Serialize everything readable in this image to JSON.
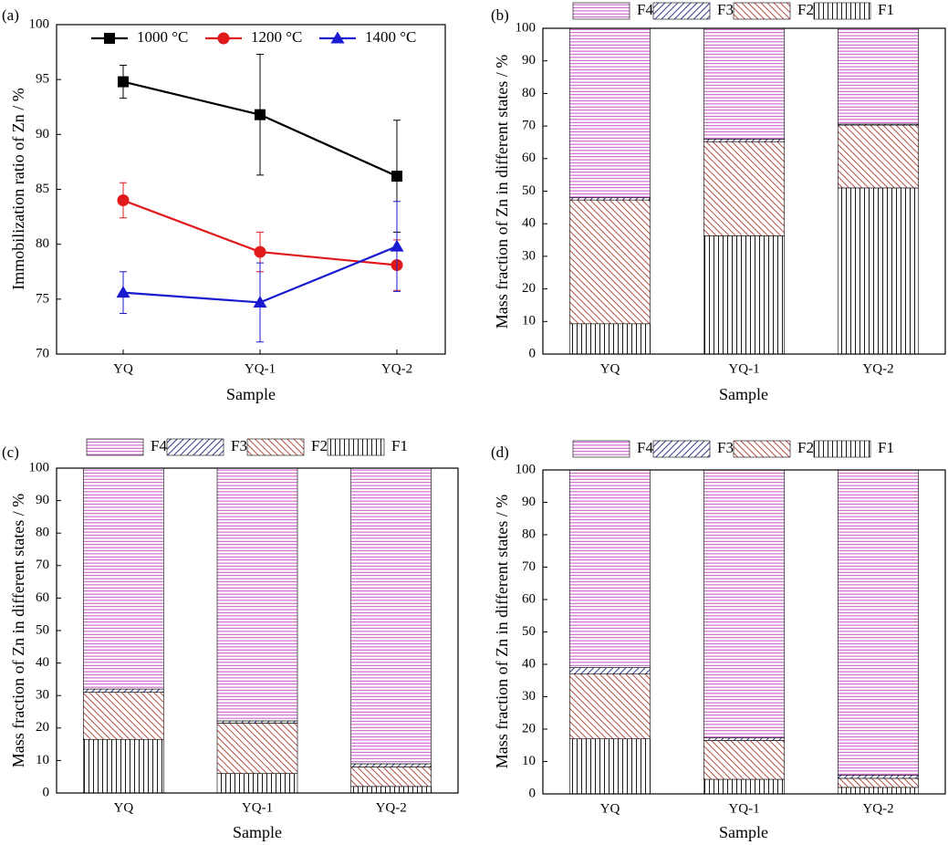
{
  "chart_data": [
    {
      "type": "line",
      "label": "(a)",
      "xlabel": "Sample",
      "ylabel": "Immobilization ratio of Zn / %",
      "categories": [
        "YQ",
        "YQ-1",
        "YQ-2"
      ],
      "ylim": [
        70,
        100
      ],
      "yticks": [
        70,
        75,
        80,
        85,
        90,
        95,
        100
      ],
      "legend": "top-left",
      "series": [
        {
          "name": "1000 °C",
          "color": "#000000",
          "marker": "square",
          "values": [
            94.8,
            91.8,
            86.2
          ],
          "errors": [
            1.5,
            5.5,
            5.1
          ]
        },
        {
          "name": "1200 °C",
          "color": "#e0191b",
          "marker": "circle",
          "values": [
            84.0,
            79.3,
            78.1
          ],
          "errors": [
            1.6,
            1.8,
            2.3
          ]
        },
        {
          "name": "1400 °C",
          "color": "#1a1ad0",
          "marker": "triangle",
          "values": [
            75.6,
            74.7,
            79.8
          ],
          "errors": [
            1.9,
            3.6,
            4.1
          ]
        }
      ]
    },
    {
      "type": "stacked-bar",
      "label": "(b)",
      "xlabel": "Sample",
      "ylabel": "Mass fraction of Zn in different states / %",
      "categories": [
        "YQ",
        "YQ-1",
        "YQ-2"
      ],
      "ylim": [
        0,
        100
      ],
      "yticks": [
        0,
        10,
        20,
        30,
        40,
        50,
        60,
        70,
        80,
        90,
        100
      ],
      "legend": "top",
      "series": [
        {
          "name": "F1",
          "color": "#000000",
          "hatch": "vertical",
          "values": [
            9.3,
            36.3,
            51.0
          ]
        },
        {
          "name": "F2",
          "color": "#b03a2e",
          "hatch": "diagonal-down",
          "values": [
            38.0,
            28.9,
            19.3
          ]
        },
        {
          "name": "F3",
          "color": "#1a237e",
          "hatch": "diagonal-up",
          "values": [
            0.7,
            0.8,
            0.3
          ]
        },
        {
          "name": "F4",
          "color": "#c03cc0",
          "hatch": "horizontal",
          "values": [
            52.0,
            34.0,
            29.4
          ]
        }
      ]
    },
    {
      "type": "stacked-bar",
      "label": "(c)",
      "xlabel": "Sample",
      "ylabel": "Mass fraction of Zn in different states / %",
      "categories": [
        "YQ",
        "YQ-1",
        "YQ-2"
      ],
      "ylim": [
        0,
        100
      ],
      "yticks": [
        0,
        10,
        20,
        30,
        40,
        50,
        60,
        70,
        80,
        90,
        100
      ],
      "legend": "top",
      "series": [
        {
          "name": "F1",
          "color": "#000000",
          "hatch": "vertical",
          "values": [
            16.5,
            6.0,
            2.0
          ]
        },
        {
          "name": "F2",
          "color": "#b03a2e",
          "hatch": "diagonal-down",
          "values": [
            14.5,
            15.5,
            6.0
          ]
        },
        {
          "name": "F3",
          "color": "#1a237e",
          "hatch": "diagonal-up",
          "values": [
            1.0,
            0.7,
            1.0
          ]
        },
        {
          "name": "F4",
          "color": "#c03cc0",
          "hatch": "horizontal",
          "values": [
            68.0,
            77.8,
            91.0
          ]
        }
      ]
    },
    {
      "type": "stacked-bar",
      "label": "(d)",
      "xlabel": "Sample",
      "ylabel": "Mass fraction of Zn in different states / %",
      "categories": [
        "YQ",
        "YQ-1",
        "YQ-2"
      ],
      "ylim": [
        0,
        100
      ],
      "yticks": [
        0,
        10,
        20,
        30,
        40,
        50,
        60,
        70,
        80,
        90,
        100
      ],
      "legend": "top",
      "series": [
        {
          "name": "F1",
          "color": "#000000",
          "hatch": "vertical",
          "values": [
            17.0,
            4.5,
            2.0
          ]
        },
        {
          "name": "F2",
          "color": "#b03a2e",
          "hatch": "diagonal-down",
          "values": [
            20.0,
            12.0,
            2.8
          ]
        },
        {
          "name": "F3",
          "color": "#1a237e",
          "hatch": "diagonal-up",
          "values": [
            2.0,
            0.8,
            1.0
          ]
        },
        {
          "name": "F4",
          "color": "#c03cc0",
          "hatch": "horizontal",
          "values": [
            61.0,
            82.7,
            94.2
          ]
        }
      ]
    }
  ]
}
